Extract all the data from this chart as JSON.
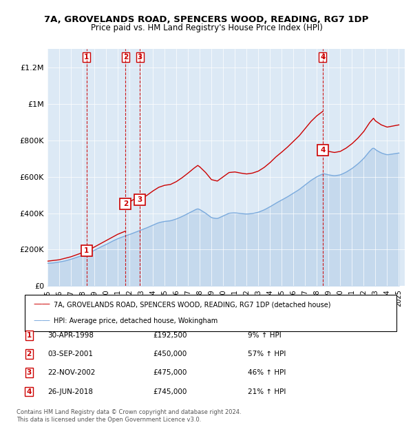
{
  "title1": "7A, GROVELANDS ROAD, SPENCERS WOOD, READING, RG7 1DP",
  "title2": "Price paid vs. HM Land Registry's House Price Index (HPI)",
  "bg_color": "#dce9f5",
  "sale_color": "#cc0000",
  "hpi_color": "#7aaadd",
  "hpi_fill_color": "#c5d9ed",
  "purchases": [
    {
      "num": 1,
      "date_label": "30-APR-1998",
      "price": 192500,
      "pct": "9%",
      "x_year": 1998.33
    },
    {
      "num": 2,
      "date_label": "03-SEP-2001",
      "price": 450000,
      "pct": "57%",
      "x_year": 2001.67
    },
    {
      "num": 3,
      "date_label": "22-NOV-2002",
      "price": 475000,
      "pct": "46%",
      "x_year": 2002.9
    },
    {
      "num": 4,
      "date_label": "26-JUN-2018",
      "price": 745000,
      "pct": "21%",
      "x_year": 2018.49
    }
  ],
  "legend1": "7A, GROVELANDS ROAD, SPENCERS WOOD, READING, RG7 1DP (detached house)",
  "legend2": "HPI: Average price, detached house, Wokingham",
  "footer1": "Contains HM Land Registry data © Crown copyright and database right 2024.",
  "footer2": "This data is licensed under the Open Government Licence v3.0.",
  "ylim": [
    0,
    1300000
  ],
  "xlim_left": 1995.0,
  "xlim_right": 2025.5,
  "yticks": [
    0,
    200000,
    400000,
    600000,
    800000,
    1000000,
    1200000
  ],
  "ytick_labels": [
    "£0",
    "£200K",
    "£400K",
    "£600K",
    "£800K",
    "£1M",
    "£1.2M"
  ]
}
